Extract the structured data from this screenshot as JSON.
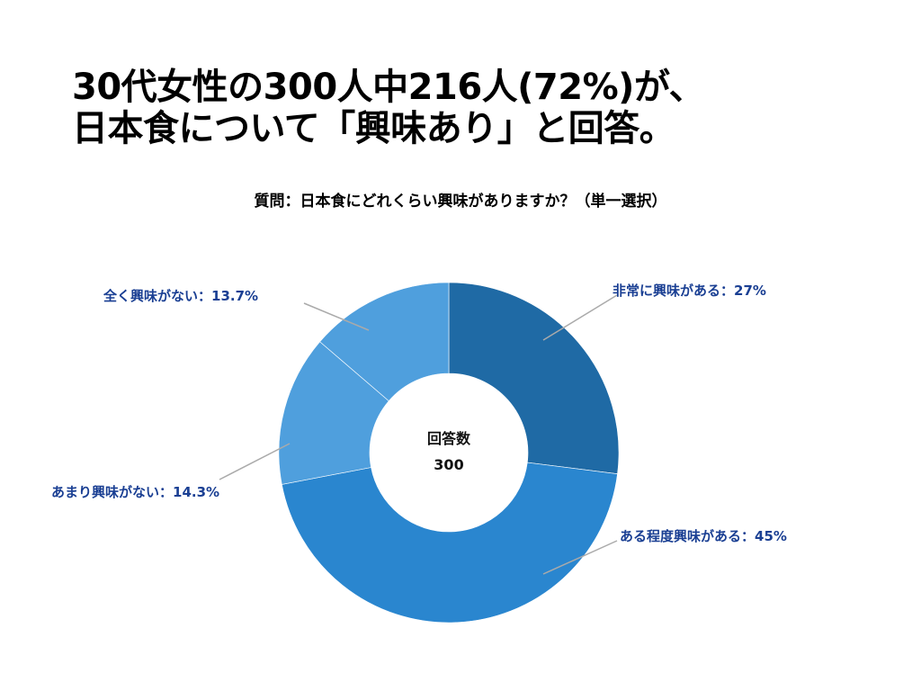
{
  "headline": {
    "line1": "30代女性の300人中216人(72%)が、",
    "line2": "日本食について「興味あり」と回答。"
  },
  "question": "質問：日本食にどれくらい興味がありますか？（単一選択）",
  "chart_data": {
    "type": "pie",
    "center_label": "回答数",
    "center_value": "300",
    "segments": [
      {
        "name": "非常に興味がある",
        "value": 27,
        "label": "非常に興味がある：27%",
        "color": "#1f6aa5"
      },
      {
        "name": "ある程度興味がある",
        "value": 45,
        "label": "ある程度興味がある：45%",
        "color": "#2a86cf"
      },
      {
        "name": "あまり興味がない",
        "value": 14.3,
        "label": "あまり興味がない：14.3%",
        "color": "#4f9fdd"
      },
      {
        "name": "全く興味がない",
        "value": 13.7,
        "label": "全く興味がない：13.7%",
        "color": "#4f9fdd"
      }
    ],
    "legend": "none"
  },
  "colors": {
    "label_text": "#1a3f93",
    "leader_line": "#aaaaaa",
    "separator": "#ffffff"
  }
}
